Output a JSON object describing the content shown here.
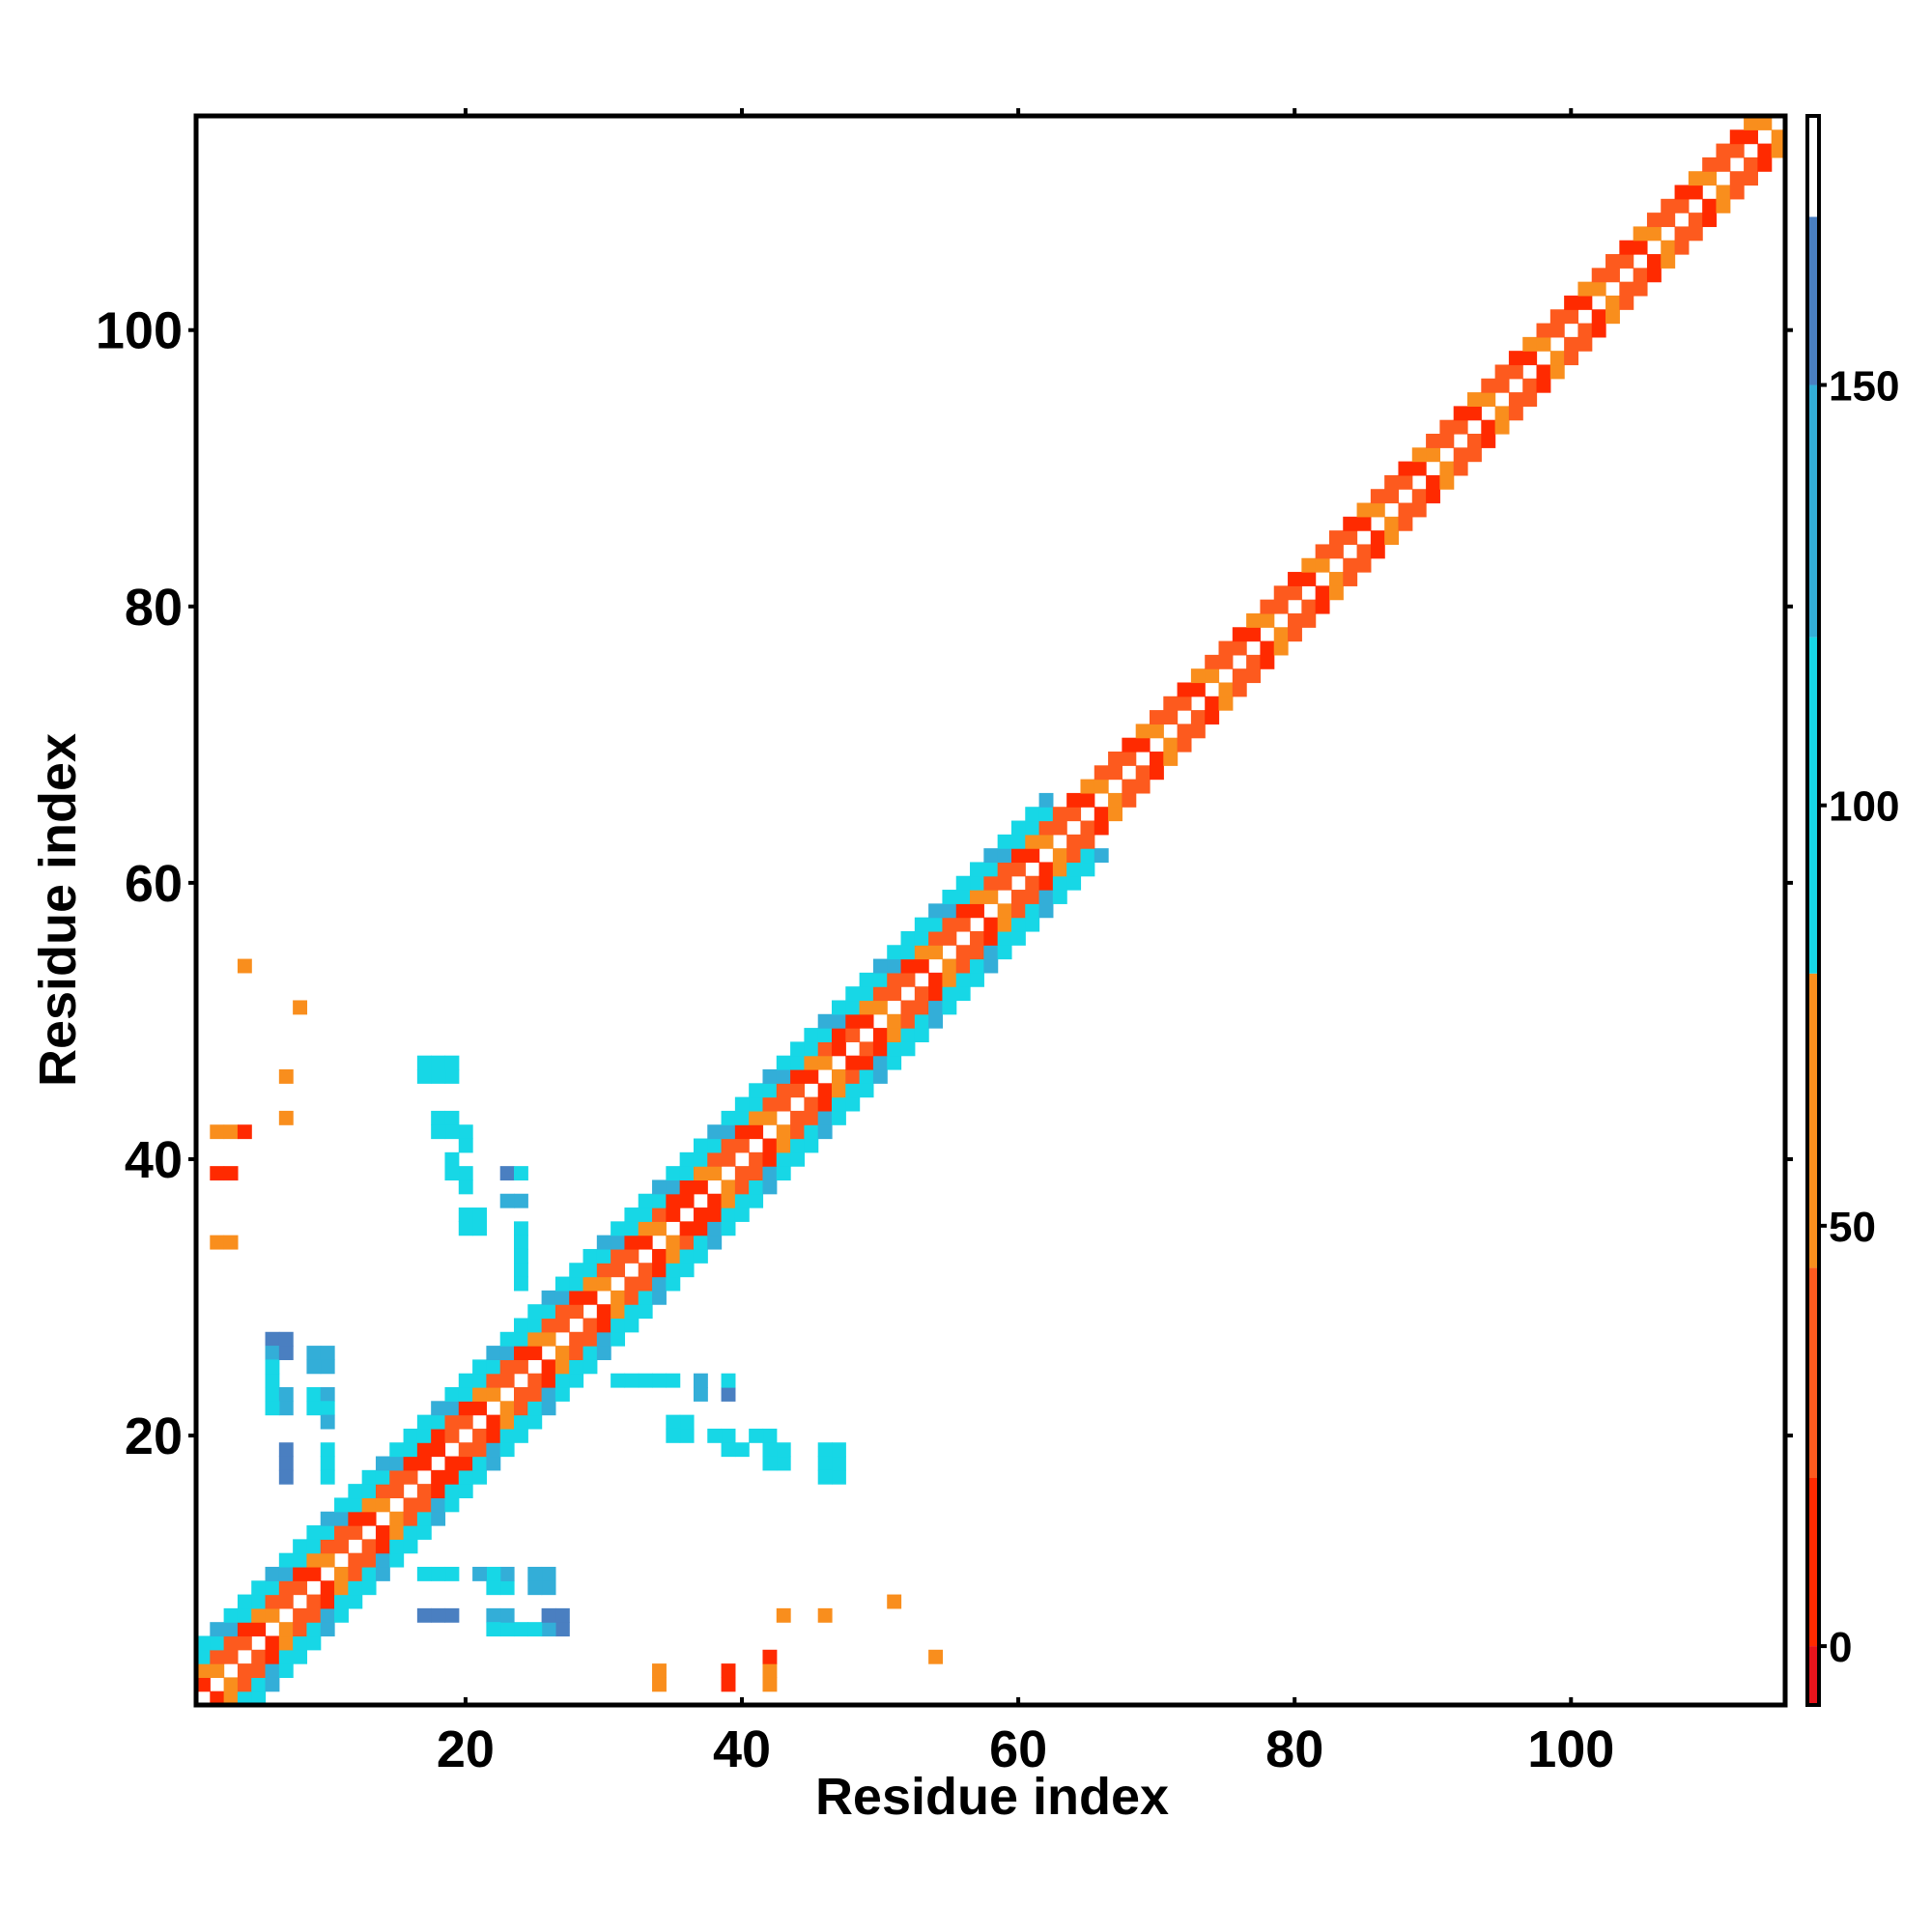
{
  "chart_data": {
    "type": "heatmap",
    "title": "",
    "xlabel": "Residue index",
    "ylabel": "Residue index",
    "xlim": [
      0.5,
      115.5
    ],
    "ylim": [
      0.5,
      115.5
    ],
    "x_ticks": [
      20,
      40,
      60,
      80,
      100
    ],
    "x_tick_labels": [
      "20",
      "40",
      "60",
      "80",
      "100"
    ],
    "y_ticks": [
      20,
      40,
      60,
      80,
      100
    ],
    "y_tick_labels": [
      "20",
      "40",
      "60",
      "80",
      "100"
    ],
    "grid": false,
    "colorbar": {
      "placement": "right",
      "range": [
        -7,
        182
      ],
      "ticks": [
        0,
        50,
        100,
        150
      ],
      "tick_labels": [
        "0",
        "50",
        "100",
        "150"
      ],
      "color_bands": [
        {
          "from": -7,
          "to": 0,
          "color": "#e8141c"
        },
        {
          "from": 0,
          "to": 20,
          "color": "#ff2a00"
        },
        {
          "from": 20,
          "to": 45,
          "color": "#fd5a1e"
        },
        {
          "from": 45,
          "to": 80,
          "color": "#f98e1d"
        },
        {
          "from": 80,
          "to": 120,
          "color": "#17d7e6"
        },
        {
          "from": 120,
          "to": 150,
          "color": "#33aed8"
        },
        {
          "from": 150,
          "to": 170,
          "color": "#4a7fc1"
        },
        {
          "from": 170,
          "to": 182,
          "color": "#ffffff"
        }
      ]
    },
    "note_values": "Cell values are color-coded per colorbar; diagonal band with i-j offsets 1-2 (orange/red) across whole chain, wider cyan/blue band (offsets 3-4) for residues 1-62, plus sparse off-diagonal contacts.",
    "diagonal_band": {
      "residue_range": [
        1,
        115
      ],
      "near_offsets": [
        1,
        2
      ],
      "near_values": [
        30,
        40,
        10,
        60
      ],
      "far_offsets": [
        3,
        4
      ],
      "far_region_end": 62,
      "far_values": [
        100,
        110,
        130,
        95
      ],
      "hot_residues": [
        17,
        18,
        35,
        36,
        47
      ]
    },
    "sparse_contacts": [
      {
        "x": 2,
        "y": 42,
        "value": 55
      },
      {
        "x": 3,
        "y": 42,
        "value": 5
      },
      {
        "x": 2,
        "y": 39,
        "value": 5
      },
      {
        "x": 2,
        "y": 34,
        "value": 60
      },
      {
        "x": 4,
        "y": 54,
        "value": 60
      },
      {
        "x": 8,
        "y": 51,
        "value": 60
      },
      {
        "x": 7,
        "y": 46,
        "value": 60
      },
      {
        "x": 7,
        "y": 43,
        "value": 60
      },
      {
        "x": 17,
        "y": 47,
        "value": 100
      },
      {
        "x": 18,
        "y": 47,
        "value": 100
      },
      {
        "x": 19,
        "y": 47,
        "value": 100
      },
      {
        "x": 18,
        "y": 43,
        "value": 100
      },
      {
        "x": 19,
        "y": 43,
        "value": 100
      },
      {
        "x": 20,
        "y": 42,
        "value": 100
      },
      {
        "x": 19,
        "y": 40,
        "value": 100
      },
      {
        "x": 20,
        "y": 39,
        "value": 100
      },
      {
        "x": 20,
        "y": 36,
        "value": 100
      },
      {
        "x": 21,
        "y": 36,
        "value": 100
      },
      {
        "x": 23,
        "y": 39,
        "value": 160
      },
      {
        "x": 24,
        "y": 39,
        "value": 100
      },
      {
        "x": 24,
        "y": 35,
        "value": 100
      },
      {
        "x": 24,
        "y": 34,
        "value": 100
      },
      {
        "x": 24,
        "y": 33,
        "value": 100
      },
      {
        "x": 24,
        "y": 32,
        "value": 100
      },
      {
        "x": 24,
        "y": 31,
        "value": 100
      },
      {
        "x": 6,
        "y": 27,
        "value": 160
      },
      {
        "x": 7,
        "y": 27,
        "value": 160
      },
      {
        "x": 6,
        "y": 26,
        "value": 160
      },
      {
        "x": 9,
        "y": 26,
        "value": 130
      },
      {
        "x": 10,
        "y": 26,
        "value": 130
      },
      {
        "x": 6,
        "y": 24,
        "value": 100
      },
      {
        "x": 6,
        "y": 23,
        "value": 100
      },
      {
        "x": 7,
        "y": 23,
        "value": 130
      },
      {
        "x": 9,
        "y": 23,
        "value": 100
      },
      {
        "x": 10,
        "y": 23,
        "value": 130
      },
      {
        "x": 10,
        "y": 22,
        "value": 100
      },
      {
        "x": 7,
        "y": 19,
        "value": 160
      },
      {
        "x": 7,
        "y": 18,
        "value": 160
      },
      {
        "x": 10,
        "y": 19,
        "value": 100
      },
      {
        "x": 10,
        "y": 18,
        "value": 100
      },
      {
        "x": 10,
        "y": 17,
        "value": 100
      },
      {
        "x": 31,
        "y": 24,
        "value": 100
      },
      {
        "x": 32,
        "y": 24,
        "value": 100
      },
      {
        "x": 33,
        "y": 24,
        "value": 100
      },
      {
        "x": 34,
        "y": 24,
        "value": 100
      },
      {
        "x": 35,
        "y": 24,
        "value": 100
      },
      {
        "x": 37,
        "y": 24,
        "value": 130
      },
      {
        "x": 37,
        "y": 23,
        "value": 130
      },
      {
        "x": 35,
        "y": 21,
        "value": 100
      },
      {
        "x": 35,
        "y": 20,
        "value": 100
      },
      {
        "x": 36,
        "y": 20,
        "value": 100
      },
      {
        "x": 38,
        "y": 20,
        "value": 100
      },
      {
        "x": 39,
        "y": 20,
        "value": 100
      },
      {
        "x": 39,
        "y": 19,
        "value": 100
      },
      {
        "x": 41,
        "y": 20,
        "value": 100
      },
      {
        "x": 42,
        "y": 20,
        "value": 100
      },
      {
        "x": 42,
        "y": 19,
        "value": 100
      },
      {
        "x": 42,
        "y": 18,
        "value": 100
      },
      {
        "x": 46,
        "y": 19,
        "value": 100
      },
      {
        "x": 46,
        "y": 18,
        "value": 100
      },
      {
        "x": 46,
        "y": 17,
        "value": 100
      },
      {
        "x": 17,
        "y": 10,
        "value": 100
      },
      {
        "x": 18,
        "y": 10,
        "value": 100
      },
      {
        "x": 19,
        "y": 10,
        "value": 100
      },
      {
        "x": 21,
        "y": 10,
        "value": 130
      },
      {
        "x": 22,
        "y": 10,
        "value": 100
      },
      {
        "x": 22,
        "y": 9,
        "value": 100
      },
      {
        "x": 25,
        "y": 10,
        "value": 130
      },
      {
        "x": 25,
        "y": 9,
        "value": 130
      },
      {
        "x": 17,
        "y": 7,
        "value": 160
      },
      {
        "x": 18,
        "y": 7,
        "value": 160
      },
      {
        "x": 22,
        "y": 7,
        "value": 130
      },
      {
        "x": 22,
        "y": 6,
        "value": 100
      },
      {
        "x": 23,
        "y": 6,
        "value": 100
      },
      {
        "x": 25,
        "y": 6,
        "value": 100
      },
      {
        "x": 26,
        "y": 6,
        "value": 130
      },
      {
        "x": 26,
        "y": 7,
        "value": 160
      },
      {
        "x": 43,
        "y": 7,
        "value": 60
      },
      {
        "x": 46,
        "y": 7,
        "value": 60
      },
      {
        "x": 51,
        "y": 8,
        "value": 60
      },
      {
        "x": 54,
        "y": 4,
        "value": 60
      },
      {
        "x": 42,
        "y": 4,
        "value": 5
      },
      {
        "x": 42,
        "y": 3,
        "value": 60
      },
      {
        "x": 34,
        "y": 3,
        "value": 60
      },
      {
        "x": 39,
        "y": 3,
        "value": 5
      }
    ]
  }
}
